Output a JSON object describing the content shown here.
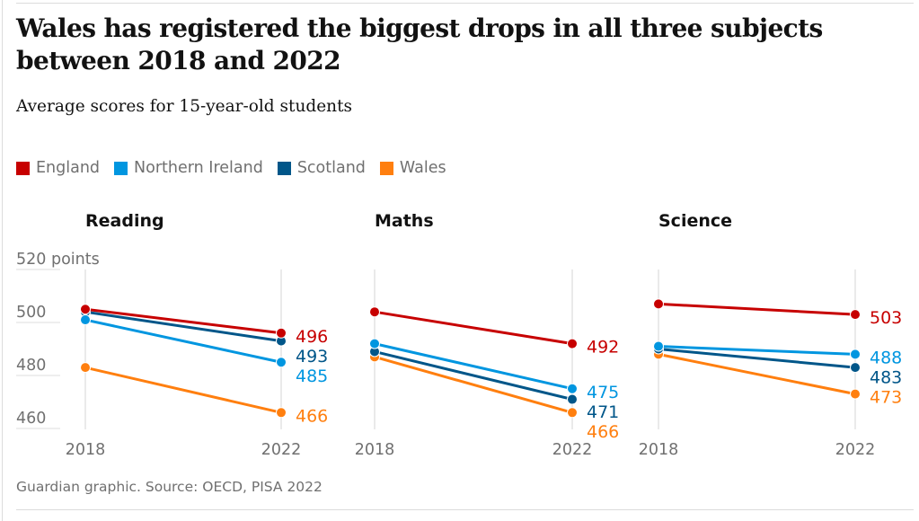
{
  "title": "Wales has registered the biggest drops in all three subjects between 2018 and 2022",
  "subtitle": "Average scores for 15-year-old students",
  "legend": [
    {
      "label": "England",
      "color": "#c70000"
    },
    {
      "label": "Northern Ireland",
      "color": "#0096e0"
    },
    {
      "label": "Scotland",
      "color": "#005689"
    },
    {
      "label": "Wales",
      "color": "#ff7f0f"
    }
  ],
  "footer": "Guardian graphic. Source: OECD, PISA 2022",
  "chart_data": {
    "type": "line",
    "title": "Wales has registered the biggest drops in all three subjects between 2018 and 2022",
    "subtitle": "Average scores for 15-year-old students",
    "x": [
      "2018",
      "2022"
    ],
    "ylabel": "points",
    "ylim": [
      455,
      520
    ],
    "yticks": [
      460,
      480,
      500,
      520
    ],
    "ytick_labels": [
      "460",
      "480",
      "500",
      "520 points"
    ],
    "grid": true,
    "legend_position": "top-left",
    "panels": [
      {
        "title": "Reading",
        "series": [
          {
            "name": "England",
            "color": "#c70000",
            "values": [
              505,
              496
            ],
            "end_label": "496"
          },
          {
            "name": "Northern Ireland",
            "color": "#0096e0",
            "values": [
              501,
              485
            ],
            "end_label": "485"
          },
          {
            "name": "Scotland",
            "color": "#005689",
            "values": [
              504,
              493
            ],
            "end_label": "493"
          },
          {
            "name": "Wales",
            "color": "#ff7f0f",
            "values": [
              483,
              466
            ],
            "end_label": "466"
          }
        ]
      },
      {
        "title": "Maths",
        "series": [
          {
            "name": "England",
            "color": "#c70000",
            "values": [
              504,
              492
            ],
            "end_label": "492"
          },
          {
            "name": "Northern Ireland",
            "color": "#0096e0",
            "values": [
              492,
              475
            ],
            "end_label": "475"
          },
          {
            "name": "Scotland",
            "color": "#005689",
            "values": [
              489,
              471
            ],
            "end_label": "471"
          },
          {
            "name": "Wales",
            "color": "#ff7f0f",
            "values": [
              487,
              466
            ],
            "end_label": "466"
          }
        ]
      },
      {
        "title": "Science",
        "series": [
          {
            "name": "England",
            "color": "#c70000",
            "values": [
              507,
              503
            ],
            "end_label": "503"
          },
          {
            "name": "Northern Ireland",
            "color": "#0096e0",
            "values": [
              491,
              488
            ],
            "end_label": "488"
          },
          {
            "name": "Scotland",
            "color": "#005689",
            "values": [
              490,
              483
            ],
            "end_label": "483"
          },
          {
            "name": "Wales",
            "color": "#ff7f0f",
            "values": [
              488,
              473
            ],
            "end_label": "473"
          }
        ]
      }
    ]
  }
}
